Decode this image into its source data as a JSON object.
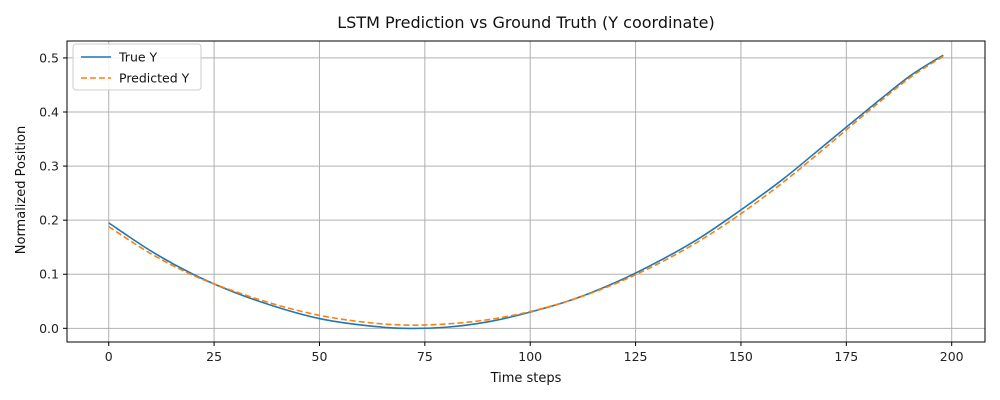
{
  "chart_data": {
    "type": "line",
    "title": "LSTM Prediction vs Ground Truth (Y coordinate)",
    "xlabel": "Time steps",
    "ylabel": "Normalized Position",
    "xlim": [
      -9.9,
      207.9
    ],
    "ylim": [
      -0.0253,
      0.5313
    ],
    "xticks": [
      0,
      25,
      50,
      75,
      100,
      125,
      150,
      175,
      200
    ],
    "yticks": [
      0.0,
      0.1,
      0.2,
      0.3,
      0.4,
      0.5
    ],
    "xtick_labels": [
      "0",
      "25",
      "50",
      "75",
      "100",
      "125",
      "150",
      "175",
      "200"
    ],
    "ytick_labels": [
      "0.0",
      "0.1",
      "0.2",
      "0.3",
      "0.4",
      "0.5"
    ],
    "grid": true,
    "legend_position": "top-left",
    "series": [
      {
        "name": "True Y",
        "color": "#1f77b4",
        "style": "solid",
        "x": [
          0,
          10,
          20,
          30,
          40,
          50,
          60,
          70,
          80,
          90,
          100,
          110,
          120,
          130,
          140,
          150,
          160,
          170,
          180,
          190,
          198
        ],
        "y": [
          0.195,
          0.143,
          0.1,
          0.066,
          0.039,
          0.018,
          0.006,
          0.0,
          0.002,
          0.012,
          0.03,
          0.053,
          0.084,
          0.122,
          0.166,
          0.219,
          0.276,
          0.34,
          0.404,
          0.466,
          0.505
        ]
      },
      {
        "name": "Predicted Y",
        "color": "#ff7f0e",
        "style": "dashed",
        "x": [
          0,
          10,
          20,
          30,
          40,
          50,
          60,
          70,
          80,
          90,
          100,
          110,
          120,
          130,
          140,
          150,
          160,
          170,
          180,
          190,
          198
        ],
        "y": [
          0.188,
          0.138,
          0.098,
          0.068,
          0.043,
          0.024,
          0.012,
          0.006,
          0.008,
          0.016,
          0.031,
          0.053,
          0.082,
          0.118,
          0.161,
          0.212,
          0.27,
          0.334,
          0.4,
          0.463,
          0.503
        ]
      }
    ]
  }
}
